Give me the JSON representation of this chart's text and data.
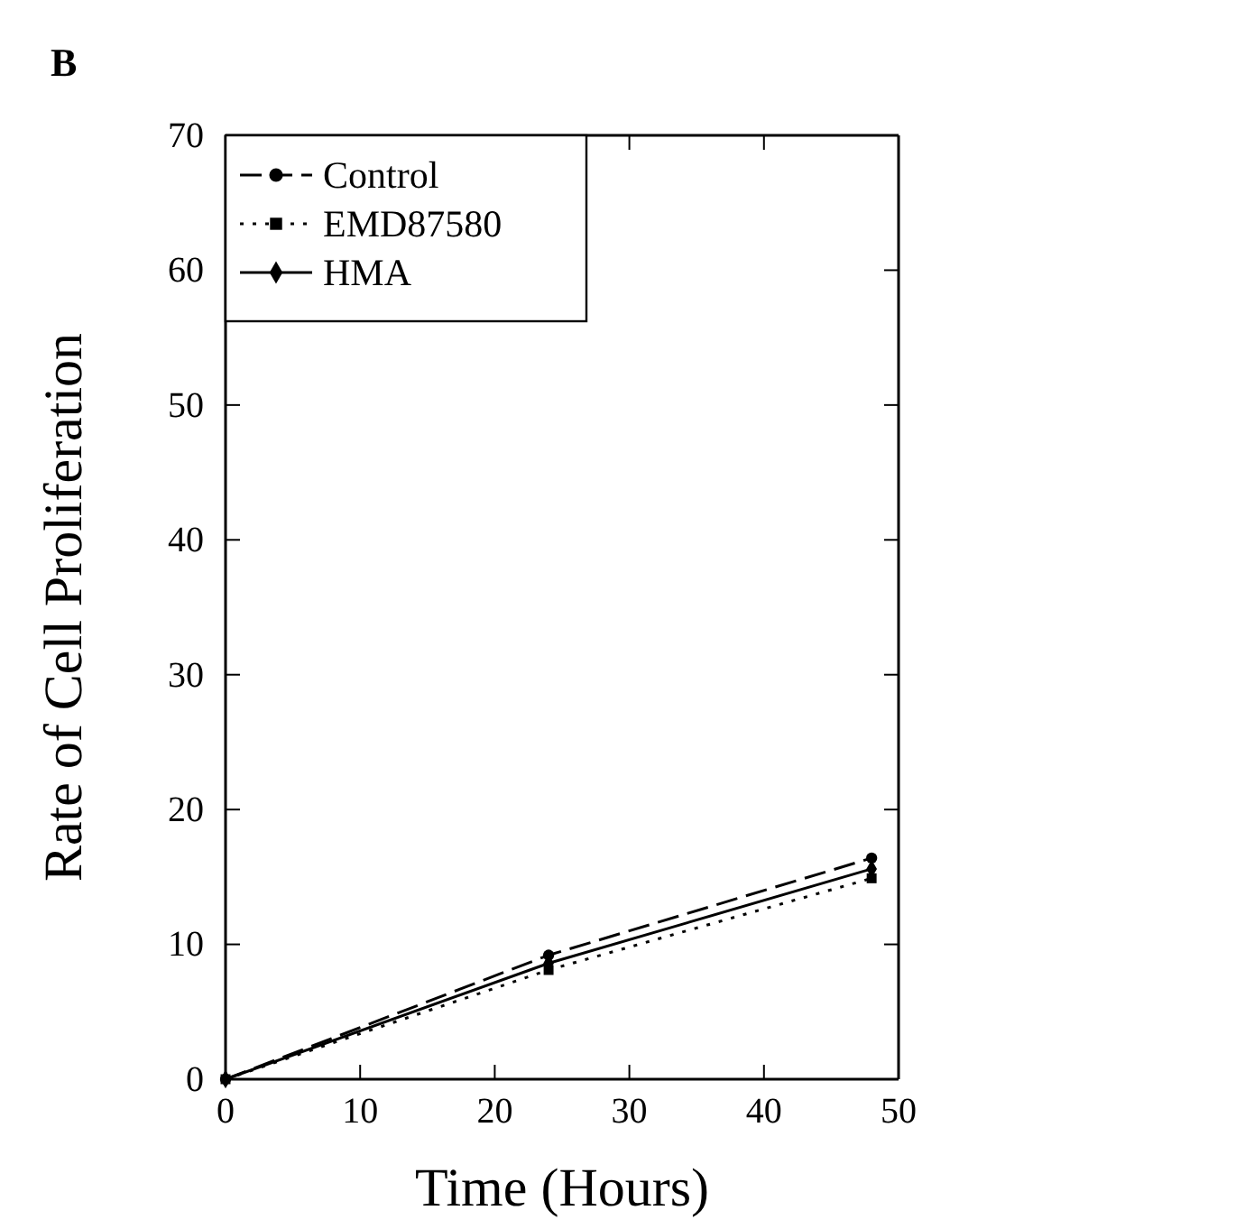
{
  "chart_data": {
    "type": "line",
    "annotations": [
      "B"
    ],
    "xlabel": "Time (Hours)",
    "ylabel": "Rate of Cell Proliferation",
    "xlim": [
      0,
      50
    ],
    "ylim": [
      0,
      70
    ],
    "xticks": [
      0,
      10,
      20,
      30,
      40,
      50
    ],
    "yticks": [
      0,
      10,
      20,
      30,
      40,
      50,
      60,
      70
    ],
    "legend": "top left",
    "grid": false,
    "x": [
      0,
      24,
      48
    ],
    "series": [
      {
        "name": "Control",
        "color": "#000000",
        "values": [
          0,
          9.2,
          16.4
        ],
        "marker": "circle",
        "line_style": "dashed"
      },
      {
        "name": "EMD87580",
        "color": "#000000",
        "values": [
          0,
          8.1,
          14.9
        ],
        "marker": "square",
        "line_style": "dotted"
      },
      {
        "name": "HMA",
        "color": "#000000",
        "values": [
          0,
          8.6,
          15.6
        ],
        "marker": "diamond",
        "line_style": "solid"
      }
    ]
  }
}
